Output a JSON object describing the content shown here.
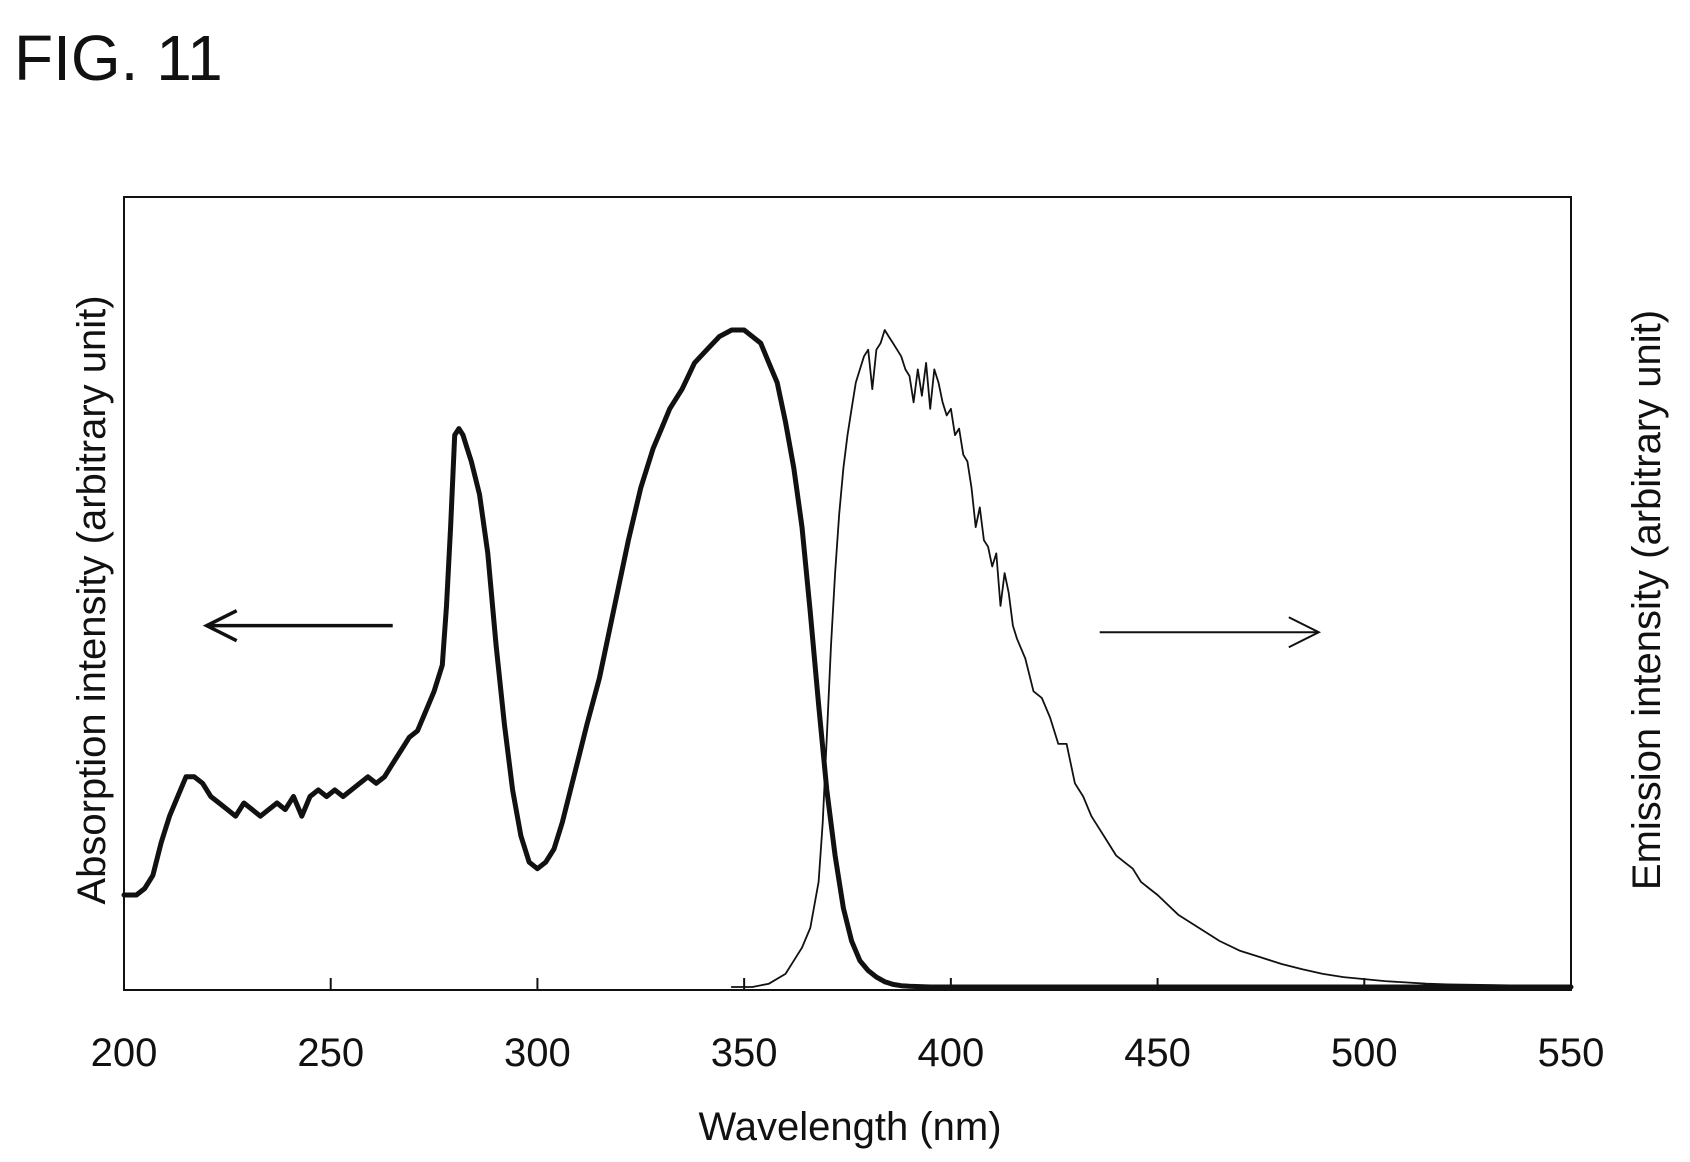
{
  "figure": {
    "label": "FIG. 11"
  },
  "chart_data": {
    "type": "line",
    "title": "",
    "xlabel": "Wavelength (nm)",
    "ylabel_left": "Absorption intensity (arbitrary unit)",
    "ylabel_right": "Emission intensity (arbitrary unit)",
    "xlim": [
      200,
      550
    ],
    "ylim": [
      0,
      1
    ],
    "x_ticks": [
      200,
      250,
      300,
      350,
      400,
      450,
      500,
      550
    ],
    "grid": false,
    "legend": "none",
    "annotations": [
      {
        "type": "arrow",
        "direction": "left",
        "points_to": "left-axis",
        "x": [
          265,
          220
        ],
        "y": 0.55
      },
      {
        "type": "arrow",
        "direction": "right",
        "points_to": "right-axis",
        "x": [
          436,
          489
        ],
        "y": 0.54
      }
    ],
    "series": [
      {
        "style": "thick",
        "axis": "left",
        "color": "#111111",
        "x": [
          200,
          203,
          205,
          207,
          209,
          211,
          213,
          215,
          217,
          219,
          221,
          223,
          225,
          227,
          229,
          231,
          233,
          235,
          237,
          239,
          241,
          243,
          245,
          247,
          249,
          251,
          253,
          255,
          257,
          259,
          261,
          263,
          265,
          267,
          269,
          271,
          273,
          275,
          277,
          278,
          279,
          280,
          281,
          282,
          283,
          284,
          286,
          288,
          290,
          292,
          294,
          296,
          298,
          300,
          302,
          304,
          306,
          308,
          310,
          312,
          315,
          318,
          320,
          322,
          325,
          328,
          330,
          332,
          335,
          338,
          341,
          344,
          347,
          350,
          352,
          354,
          356,
          358,
          360,
          362,
          364,
          366,
          368,
          370,
          372,
          374,
          376,
          378,
          380,
          382,
          384,
          386,
          388,
          390,
          395,
          400,
          450,
          500,
          550
        ],
        "y": [
          0.14,
          0.14,
          0.15,
          0.17,
          0.22,
          0.26,
          0.29,
          0.32,
          0.32,
          0.31,
          0.29,
          0.28,
          0.27,
          0.26,
          0.28,
          0.27,
          0.26,
          0.27,
          0.28,
          0.27,
          0.29,
          0.26,
          0.29,
          0.3,
          0.29,
          0.3,
          0.29,
          0.3,
          0.31,
          0.32,
          0.31,
          0.32,
          0.34,
          0.36,
          0.38,
          0.39,
          0.42,
          0.45,
          0.49,
          0.58,
          0.7,
          0.84,
          0.85,
          0.84,
          0.82,
          0.8,
          0.75,
          0.66,
          0.52,
          0.4,
          0.3,
          0.23,
          0.19,
          0.18,
          0.19,
          0.21,
          0.25,
          0.3,
          0.35,
          0.4,
          0.47,
          0.56,
          0.62,
          0.68,
          0.76,
          0.82,
          0.85,
          0.88,
          0.91,
          0.95,
          0.97,
          0.99,
          1.0,
          1.0,
          0.99,
          0.98,
          0.95,
          0.92,
          0.86,
          0.79,
          0.7,
          0.57,
          0.43,
          0.3,
          0.2,
          0.12,
          0.07,
          0.04,
          0.025,
          0.015,
          0.008,
          0.004,
          0.002,
          0.001,
          0,
          0,
          0,
          0,
          0
        ]
      },
      {
        "style": "thin",
        "axis": "right",
        "color": "#111111",
        "x": [
          347,
          352,
          356,
          360,
          362,
          364,
          366,
          368,
          369,
          370,
          371,
          372,
          373,
          374,
          375,
          376,
          377,
          378,
          379,
          380,
          381,
          382,
          383,
          384,
          385,
          386,
          387,
          388,
          389,
          390,
          391,
          392,
          393,
          394,
          395,
          396,
          397,
          398,
          399,
          400,
          401,
          402,
          403,
          404,
          405,
          406,
          407,
          408,
          409,
          410,
          411,
          412,
          413,
          414,
          415,
          416,
          418,
          420,
          422,
          424,
          426,
          428,
          430,
          432,
          434,
          436,
          438,
          440,
          442,
          444,
          446,
          448,
          450,
          455,
          460,
          465,
          470,
          475,
          480,
          485,
          490,
          495,
          500,
          505,
          510,
          515,
          520,
          530,
          540,
          550
        ],
        "y": [
          0,
          0,
          0.005,
          0.02,
          0.04,
          0.06,
          0.09,
          0.16,
          0.25,
          0.38,
          0.52,
          0.63,
          0.72,
          0.79,
          0.84,
          0.88,
          0.92,
          0.94,
          0.96,
          0.97,
          0.91,
          0.97,
          0.98,
          1.0,
          0.99,
          0.98,
          0.97,
          0.96,
          0.94,
          0.93,
          0.89,
          0.94,
          0.9,
          0.95,
          0.88,
          0.94,
          0.92,
          0.89,
          0.87,
          0.88,
          0.84,
          0.85,
          0.81,
          0.8,
          0.76,
          0.7,
          0.73,
          0.68,
          0.67,
          0.64,
          0.66,
          0.58,
          0.63,
          0.6,
          0.55,
          0.53,
          0.5,
          0.45,
          0.44,
          0.41,
          0.37,
          0.37,
          0.31,
          0.29,
          0.26,
          0.24,
          0.22,
          0.2,
          0.19,
          0.18,
          0.16,
          0.15,
          0.14,
          0.11,
          0.09,
          0.07,
          0.055,
          0.045,
          0.035,
          0.027,
          0.02,
          0.015,
          0.012,
          0.009,
          0.007,
          0.005,
          0.004,
          0.003,
          0.002,
          0.002
        ]
      }
    ]
  }
}
